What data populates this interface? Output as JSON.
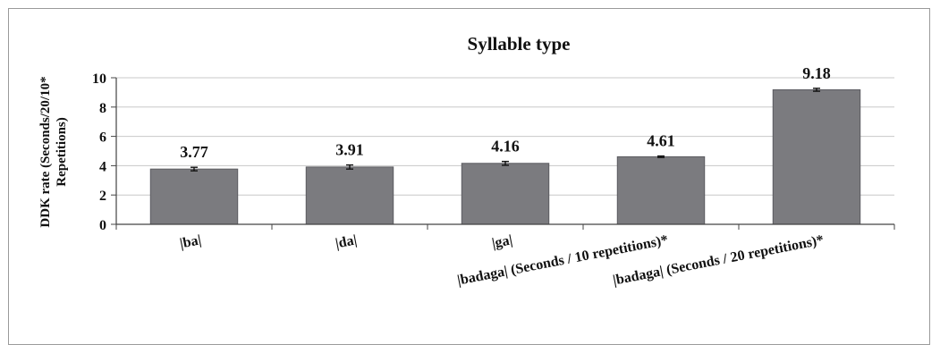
{
  "chart_data": {
    "type": "bar",
    "title": "Syllable type",
    "ylabel_lines": [
      "DDK rate (Seconds/20/10*",
      "Repetitions)"
    ],
    "xlabel": "",
    "ylim": [
      0,
      10
    ],
    "yticks": [
      0,
      2,
      4,
      6,
      8,
      10
    ],
    "grid": true,
    "categories": [
      "|ba|",
      "|da|",
      "|ga|",
      "|badaga| (Seconds / 10 repetitions)*",
      "|badaga| (Seconds / 20 repetitions)*"
    ],
    "values": [
      3.77,
      3.91,
      4.16,
      4.61,
      9.18
    ],
    "data_labels": [
      "3.77",
      "3.91",
      "4.16",
      "4.61",
      "9.18"
    ],
    "error": [
      0.12,
      0.14,
      0.13,
      0.05,
      0.1
    ],
    "colors": {
      "bar": "#7b7b7f",
      "bar_edge": "#5c5c60",
      "grid": "#c8c8c8",
      "axis": "#444444",
      "error_bar": "#111111"
    }
  }
}
